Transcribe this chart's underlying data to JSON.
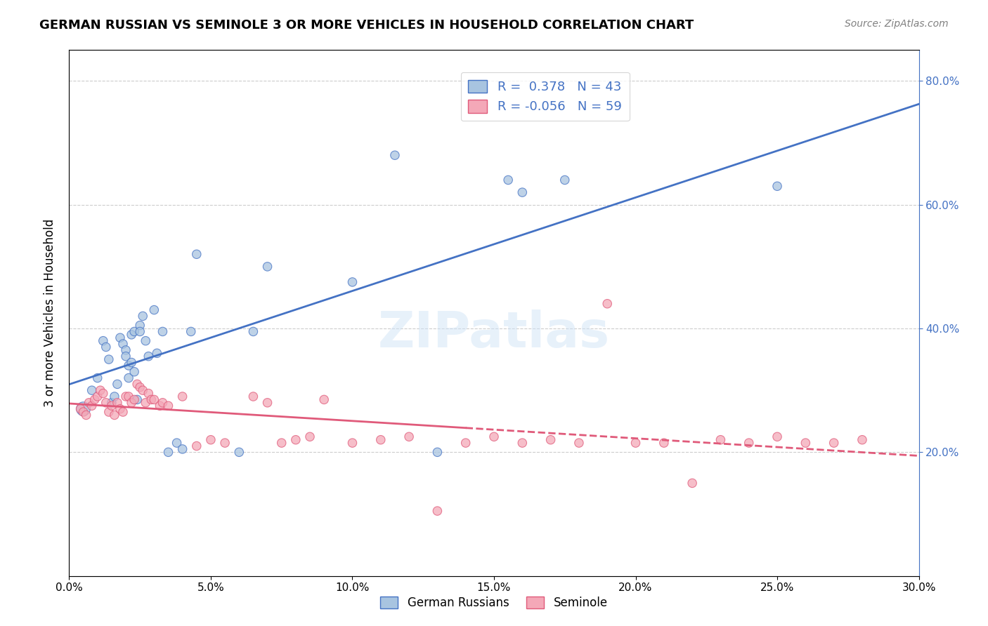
{
  "title": "GERMAN RUSSIAN VS SEMINOLE 3 OR MORE VEHICLES IN HOUSEHOLD CORRELATION CHART",
  "source": "Source: ZipAtlas.com",
  "xlabel_bottom": "",
  "ylabel": "3 or more Vehicles in Household",
  "xmin": 0.0,
  "xmax": 0.3,
  "ymin": 0.0,
  "ymax": 0.85,
  "x_tick_labels": [
    "0.0%",
    "5.0%",
    "10.0%",
    "15.0%",
    "20.0%",
    "25.0%",
    "30.0%"
  ],
  "x_tick_vals": [
    0.0,
    0.05,
    0.1,
    0.15,
    0.2,
    0.25,
    0.3
  ],
  "y_tick_labels_left": [
    "20.0%",
    "40.0%",
    "60.0%",
    "80.0%"
  ],
  "y_tick_vals": [
    0.2,
    0.4,
    0.6,
    0.8
  ],
  "legend_blue_R": "0.378",
  "legend_blue_N": "43",
  "legend_pink_R": "-0.056",
  "legend_pink_N": "59",
  "watermark": "ZIPatlas",
  "blue_color": "#a8c4e0",
  "pink_color": "#f4a8b8",
  "blue_line_color": "#4472c4",
  "pink_line_color": "#e05a7a",
  "german_russian_x": [
    0.005,
    0.008,
    0.01,
    0.012,
    0.013,
    0.014,
    0.015,
    0.016,
    0.017,
    0.018,
    0.019,
    0.02,
    0.02,
    0.021,
    0.021,
    0.022,
    0.022,
    0.023,
    0.023,
    0.024,
    0.025,
    0.025,
    0.026,
    0.027,
    0.028,
    0.03,
    0.031,
    0.033,
    0.035,
    0.038,
    0.04,
    0.043,
    0.045,
    0.06,
    0.065,
    0.07,
    0.1,
    0.115,
    0.13,
    0.155,
    0.16,
    0.175,
    0.25
  ],
  "german_russian_y": [
    0.27,
    0.3,
    0.32,
    0.38,
    0.37,
    0.35,
    0.28,
    0.29,
    0.31,
    0.385,
    0.375,
    0.365,
    0.355,
    0.34,
    0.32,
    0.39,
    0.345,
    0.33,
    0.395,
    0.285,
    0.405,
    0.395,
    0.42,
    0.38,
    0.355,
    0.43,
    0.36,
    0.395,
    0.2,
    0.215,
    0.205,
    0.395,
    0.52,
    0.2,
    0.395,
    0.5,
    0.475,
    0.68,
    0.2,
    0.64,
    0.62,
    0.64,
    0.63
  ],
  "german_russian_size": [
    200,
    80,
    80,
    80,
    80,
    80,
    80,
    80,
    80,
    80,
    80,
    80,
    80,
    80,
    80,
    80,
    80,
    80,
    80,
    80,
    80,
    80,
    80,
    80,
    80,
    80,
    80,
    80,
    80,
    80,
    80,
    80,
    80,
    80,
    80,
    80,
    80,
    80,
    80,
    80,
    80,
    80,
    80
  ],
  "seminole_x": [
    0.004,
    0.005,
    0.006,
    0.007,
    0.008,
    0.009,
    0.01,
    0.011,
    0.012,
    0.013,
    0.014,
    0.015,
    0.016,
    0.017,
    0.018,
    0.019,
    0.02,
    0.021,
    0.022,
    0.023,
    0.024,
    0.025,
    0.026,
    0.027,
    0.028,
    0.029,
    0.03,
    0.032,
    0.033,
    0.035,
    0.04,
    0.045,
    0.05,
    0.055,
    0.065,
    0.07,
    0.075,
    0.08,
    0.085,
    0.09,
    0.1,
    0.11,
    0.12,
    0.13,
    0.14,
    0.15,
    0.16,
    0.17,
    0.18,
    0.19,
    0.2,
    0.21,
    0.22,
    0.23,
    0.24,
    0.25,
    0.26,
    0.27,
    0.28
  ],
  "seminole_y": [
    0.27,
    0.265,
    0.26,
    0.28,
    0.275,
    0.285,
    0.29,
    0.3,
    0.295,
    0.28,
    0.265,
    0.275,
    0.26,
    0.28,
    0.27,
    0.265,
    0.29,
    0.29,
    0.28,
    0.285,
    0.31,
    0.305,
    0.3,
    0.28,
    0.295,
    0.285,
    0.285,
    0.275,
    0.28,
    0.275,
    0.29,
    0.21,
    0.22,
    0.215,
    0.29,
    0.28,
    0.215,
    0.22,
    0.225,
    0.285,
    0.215,
    0.22,
    0.225,
    0.105,
    0.215,
    0.225,
    0.215,
    0.22,
    0.215,
    0.44,
    0.215,
    0.215,
    0.15,
    0.22,
    0.215,
    0.225,
    0.215,
    0.215,
    0.22
  ],
  "seminole_size": [
    80,
    80,
    80,
    80,
    80,
    80,
    80,
    80,
    80,
    80,
    80,
    80,
    80,
    80,
    80,
    80,
    80,
    80,
    80,
    80,
    80,
    80,
    80,
    80,
    80,
    80,
    80,
    80,
    80,
    80,
    80,
    80,
    80,
    80,
    80,
    80,
    80,
    80,
    80,
    80,
    80,
    80,
    80,
    80,
    80,
    80,
    80,
    80,
    80,
    80,
    80,
    80,
    80,
    80,
    80,
    80,
    80,
    80,
    80
  ]
}
